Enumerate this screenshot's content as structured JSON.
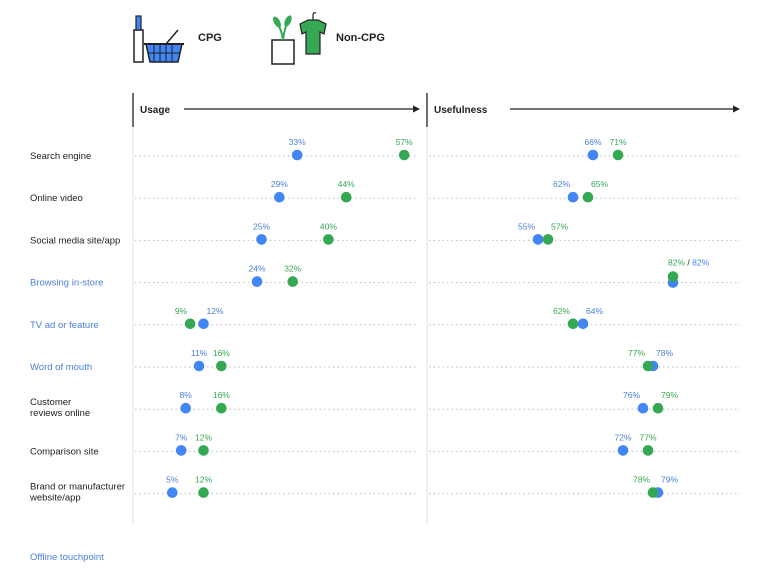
{
  "legend": {
    "cpg_label": "CPG",
    "noncpg_label": "Non-CPG",
    "cpg_icon": "lipstick-basket-icon",
    "noncpg_icon": "plant-shirt-icon"
  },
  "colors": {
    "cpg": "#4285f4",
    "noncpg": "#34a853",
    "offline_text": "#4a7fd8"
  },
  "footnote": "Offline touchpoint",
  "chart_data": {
    "type": "scatter",
    "panels": [
      {
        "title": "Usage",
        "key": "usage"
      },
      {
        "title": "Usefulness",
        "key": "usefulness"
      }
    ],
    "series": [
      {
        "name": "CPG",
        "color": "#4285f4"
      },
      {
        "name": "Non-CPG",
        "color": "#34a853"
      }
    ],
    "rows": [
      {
        "label": "Search engine",
        "offline": false,
        "usage": {
          "cpg": 33,
          "noncpg": 57
        },
        "usefulness": {
          "cpg": 66,
          "noncpg": 71
        }
      },
      {
        "label": "Online video",
        "offline": false,
        "usage": {
          "cpg": 29,
          "noncpg": 44
        },
        "usefulness": {
          "cpg": 62,
          "noncpg": 65
        }
      },
      {
        "label": "Social media site/app",
        "offline": false,
        "usage": {
          "cpg": 25,
          "noncpg": 40
        },
        "usefulness": {
          "cpg": 55,
          "noncpg": 57
        }
      },
      {
        "label": "Browsing in-store",
        "offline": true,
        "usage": {
          "cpg": 24,
          "noncpg": 32
        },
        "usefulness": {
          "cpg": 82,
          "noncpg": 82
        },
        "usefulness_label": "82% / 82%"
      },
      {
        "label": "TV ad or feature",
        "offline": true,
        "usage": {
          "cpg": 12,
          "noncpg": 9
        },
        "usefulness": {
          "cpg": 64,
          "noncpg": 62
        }
      },
      {
        "label": "Word of mouth",
        "offline": true,
        "usage": {
          "cpg": 11,
          "noncpg": 16
        },
        "usefulness": {
          "cpg": 78,
          "noncpg": 77
        }
      },
      {
        "label": "Customer\nreviews online",
        "offline": false,
        "usage": {
          "cpg": 8,
          "noncpg": 16
        },
        "usefulness": {
          "cpg": 76,
          "noncpg": 79
        }
      },
      {
        "label": "Comparison site",
        "offline": false,
        "usage": {
          "cpg": 7,
          "noncpg": 12
        },
        "usefulness": {
          "cpg": 72,
          "noncpg": 77
        }
      },
      {
        "label": "Brand or manufacturer\nwebsite/app",
        "offline": false,
        "usage": {
          "cpg": 5,
          "noncpg": 12
        },
        "usefulness": {
          "cpg": 79,
          "noncpg": 78
        }
      }
    ]
  }
}
